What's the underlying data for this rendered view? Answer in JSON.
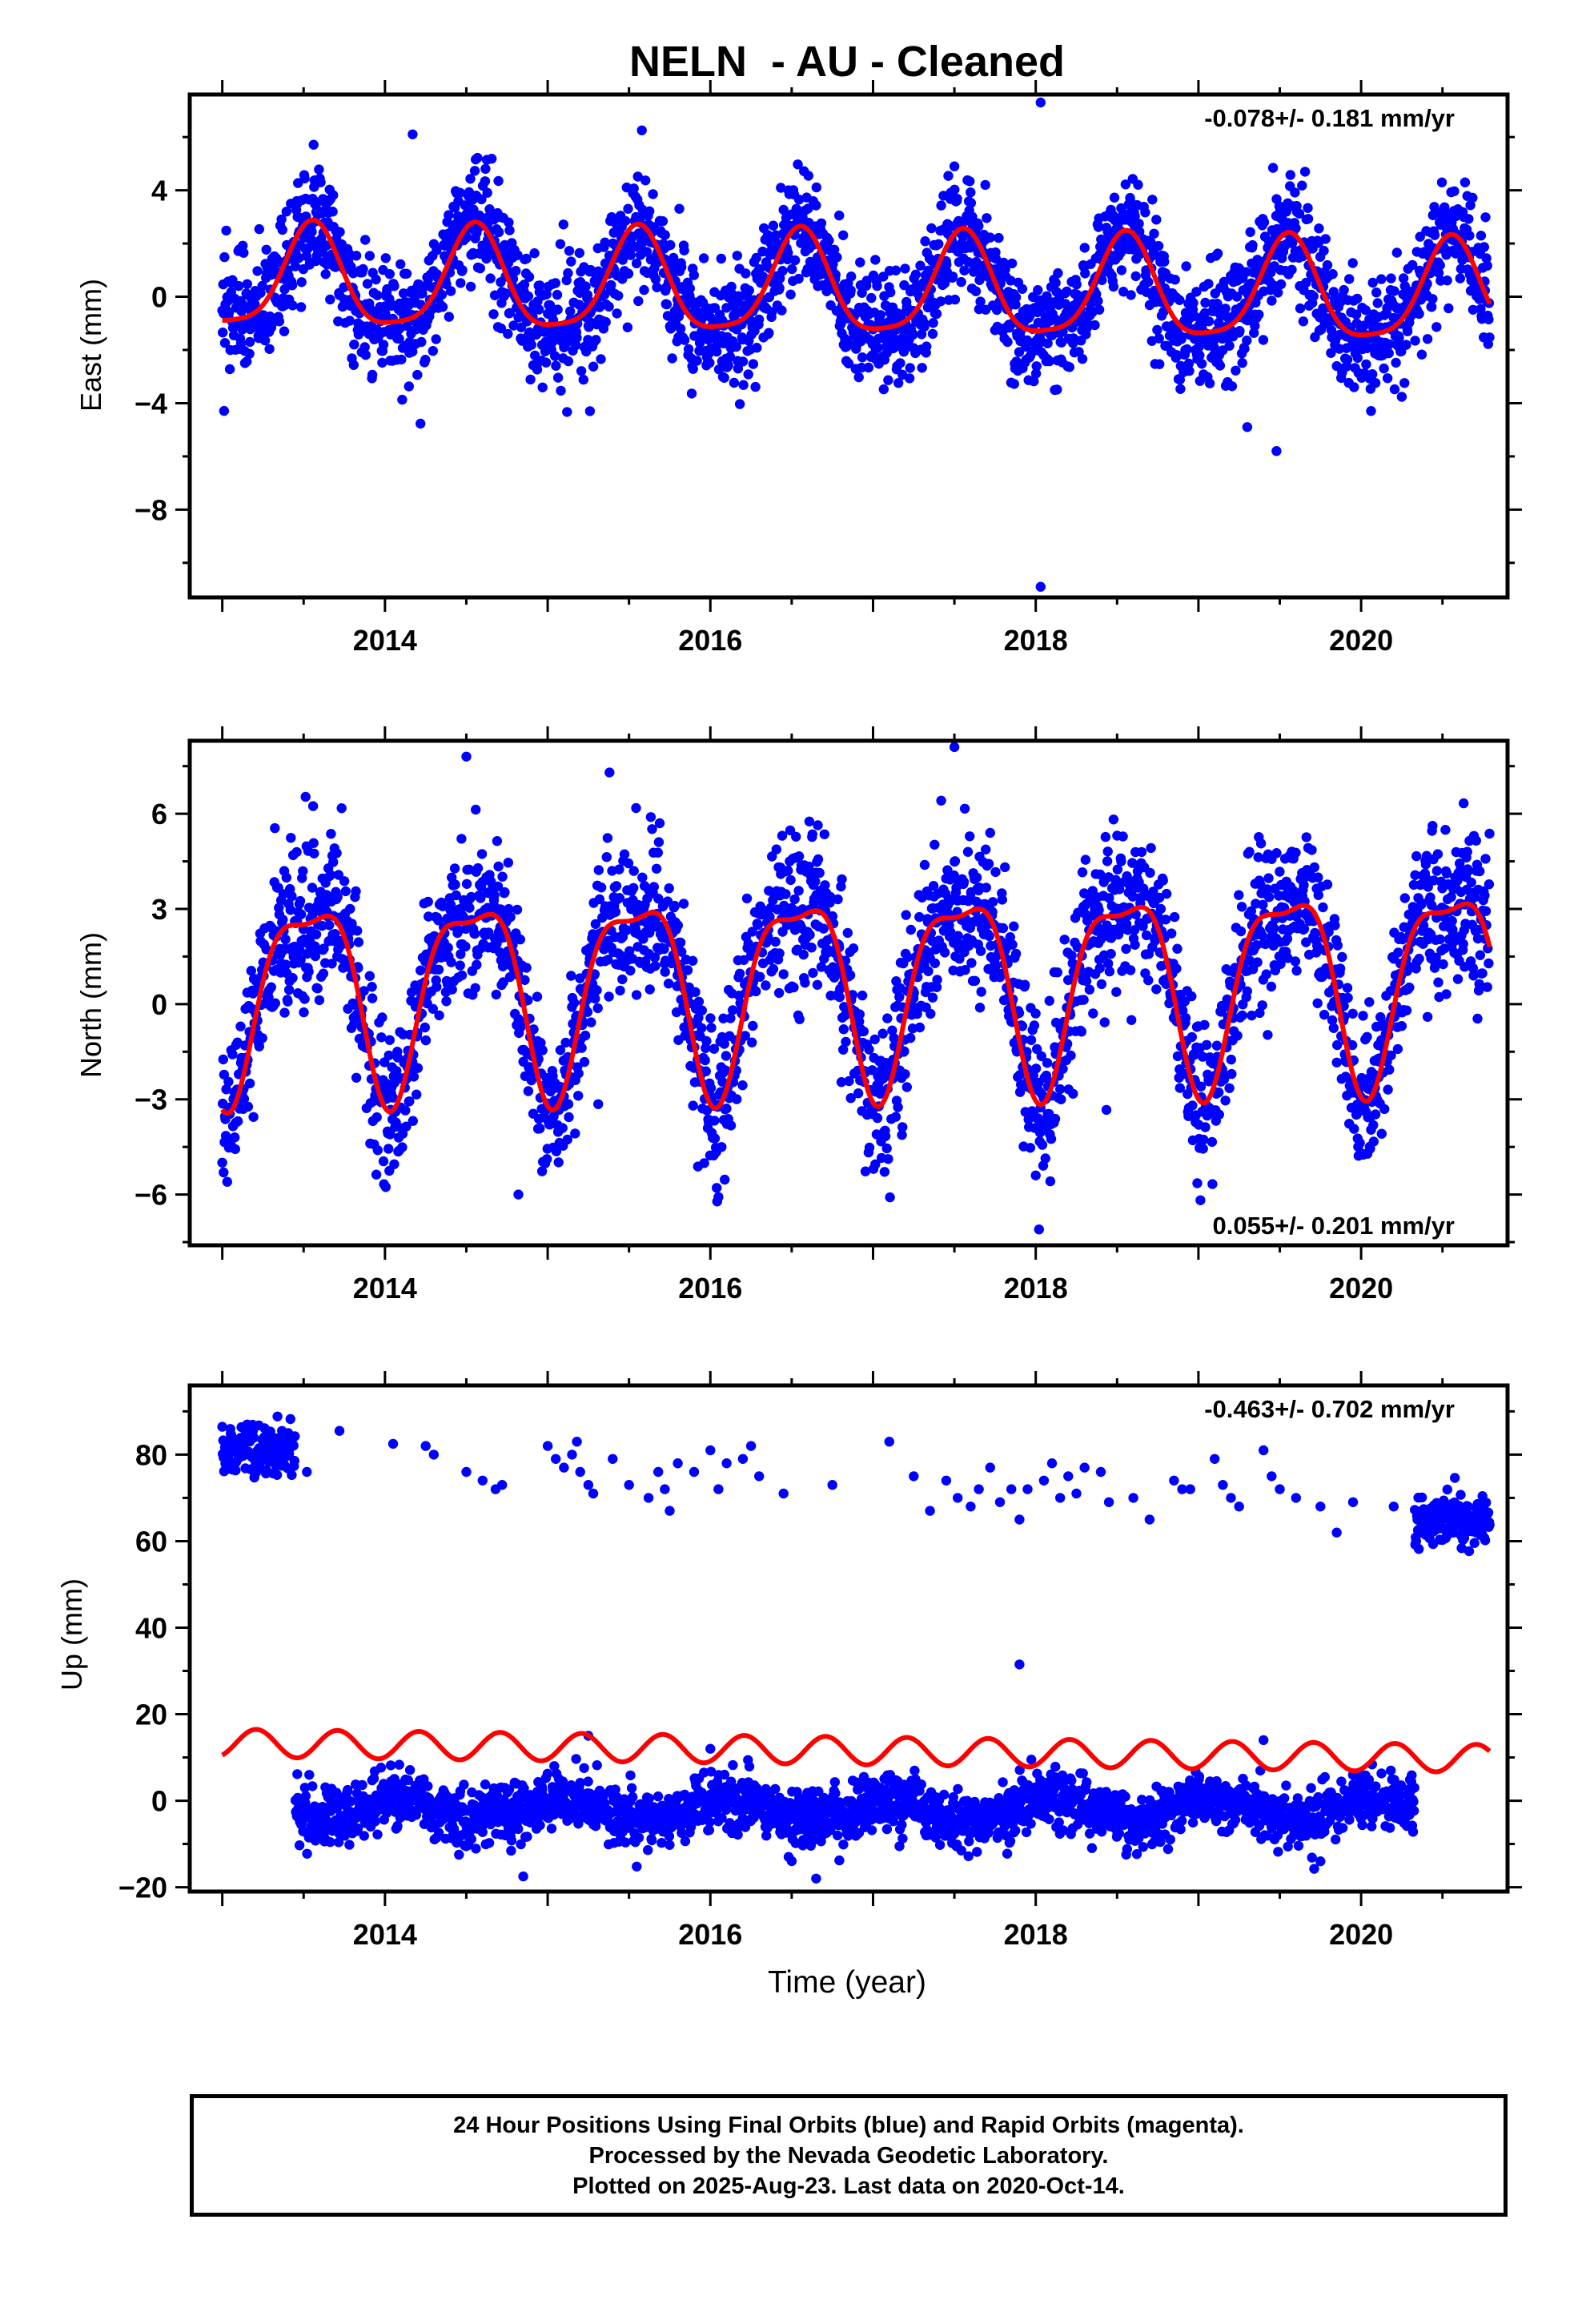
{
  "title": "NELN  - AU - Cleaned",
  "x_axis_label": "Time (year)",
  "caption_lines": [
    "24 Hour Positions Using Final Orbits (blue) and Rapid Orbits (magenta).",
    "Processed by the Nevada Geodetic Laboratory.",
    "Plotted on 2025-Aug-23. Last data on 2020-Oct-14."
  ],
  "colors": {
    "data_points": "#0000ff",
    "model_fit": "#ff0000",
    "frame": "#000000"
  },
  "chart_data": [
    {
      "type": "scatter",
      "name": "east",
      "ylabel": "East (mm)",
      "rate_label": "-0.078+/- 0.181 mm/yr",
      "rate_label_position": "top-right",
      "xlim": [
        2012.8,
        2020.9
      ],
      "ylim": [
        -11.3,
        7.6
      ],
      "x_ticks": [
        2014,
        2016,
        2018,
        2020
      ],
      "y_ticks": [
        4,
        0,
        -4,
        -8
      ],
      "y_tick_labels": [
        "4",
        "0",
        "−4",
        "−8"
      ],
      "x_range": [
        2013.0,
        2020.79
      ],
      "model": {
        "offset": 0.3,
        "trend": -0.078,
        "ref_year": 2017.0,
        "annual_cos": -1.8,
        "annual_sin": -0.6,
        "semiannual_cos": 0.3,
        "semiannual_sin": 0.3
      },
      "noise_sigma": 1.1,
      "outliers": [
        [
          2014.17,
          6.1
        ],
        [
          2018.03,
          7.3
        ],
        [
          2018.03,
          -10.9
        ],
        [
          2019.48,
          -5.8
        ],
        [
          2019.3,
          -4.9
        ],
        [
          2015.26,
          -4.3
        ],
        [
          2017.5,
          4.9
        ]
      ]
    },
    {
      "type": "scatter",
      "name": "north",
      "ylabel": "North (mm)",
      "rate_label": "0.055+/- 0.201 mm/yr",
      "rate_label_position": "bottom-right",
      "xlim": [
        2012.8,
        2020.9
      ],
      "ylim": [
        -7.6,
        8.3
      ],
      "x_ticks": [
        2014,
        2016,
        2018,
        2020
      ],
      "y_ticks": [
        6,
        3,
        0,
        -3,
        -6
      ],
      "y_tick_labels": [
        "6",
        "3",
        "0",
        "−3",
        "−6"
      ],
      "x_range": [
        2013.0,
        2020.79
      ],
      "model": {
        "offset": 0.7,
        "trend": 0.055,
        "ref_year": 2017.0,
        "annual_cos": -2.9,
        "annual_sin": -0.7,
        "semiannual_cos": -0.9,
        "semiannual_sin": -0.3
      },
      "noise_sigma": 1.2,
      "outliers": [
        [
          2014.5,
          7.8
        ],
        [
          2015.38,
          7.3
        ],
        [
          2017.5,
          8.1
        ],
        [
          2018.02,
          -7.1
        ],
        [
          2014.82,
          -6.0
        ],
        [
          2018.0,
          -5.4
        ]
      ]
    },
    {
      "type": "scatter",
      "name": "up",
      "ylabel": "Up (mm)",
      "rate_label": "-0.463+/- 0.702 mm/yr",
      "rate_label_position": "top-right",
      "xlim": [
        2012.8,
        2020.9
      ],
      "ylim": [
        -21,
        96
      ],
      "x_ticks": [
        2014,
        2016,
        2018,
        2020
      ],
      "y_ticks": [
        80,
        60,
        40,
        20,
        0,
        -20
      ],
      "y_tick_labels": [
        "80",
        "60",
        "40",
        "20",
        "0",
        "−20"
      ],
      "x_range": [
        2013.0,
        2020.79
      ],
      "model": {
        "offset": 11.5,
        "trend": -0.463,
        "ref_year": 2017.0,
        "annual_cos": 0.0,
        "annual_sin": 0.0,
        "semiannual_cos": -2.8,
        "semiannual_sin": 1.6
      },
      "main_cluster": {
        "x_range": [
          2013.45,
          2020.33
        ],
        "mean": -2.0,
        "seasonal_amp": 2.5,
        "noise_sigma": 3.2
      },
      "high_cluster_early": {
        "x_range": [
          2013.0,
          2013.45
        ],
        "mean": 81,
        "noise_sigma": 3.2
      },
      "high_cluster_late": {
        "x_range": [
          2020.33,
          2020.79
        ],
        "mean": 65,
        "noise_sigma": 3.0
      },
      "high_sparse": [
        [
          2013.72,
          85.5
        ],
        [
          2013.52,
          76
        ],
        [
          2014.05,
          82.5
        ],
        [
          2014.25,
          82
        ],
        [
          2014.3,
          80
        ],
        [
          2014.5,
          76
        ],
        [
          2014.6,
          74
        ],
        [
          2014.68,
          72
        ],
        [
          2014.72,
          73
        ],
        [
          2015.0,
          82
        ],
        [
          2015.05,
          79
        ],
        [
          2015.1,
          77
        ],
        [
          2015.15,
          80
        ],
        [
          2015.18,
          83
        ],
        [
          2015.2,
          76
        ],
        [
          2015.25,
          73
        ],
        [
          2015.28,
          71
        ],
        [
          2015.4,
          79
        ],
        [
          2015.5,
          73
        ],
        [
          2015.62,
          70
        ],
        [
          2015.68,
          76
        ],
        [
          2015.72,
          72
        ],
        [
          2015.75,
          67
        ],
        [
          2015.8,
          78
        ],
        [
          2015.9,
          76
        ],
        [
          2016.0,
          81
        ],
        [
          2016.05,
          72
        ],
        [
          2016.1,
          78
        ],
        [
          2016.2,
          79
        ],
        [
          2016.25,
          82
        ],
        [
          2016.3,
          75
        ],
        [
          2016.45,
          71
        ],
        [
          2016.75,
          73
        ],
        [
          2017.1,
          83
        ],
        [
          2017.25,
          75
        ],
        [
          2017.35,
          67
        ],
        [
          2017.45,
          74
        ],
        [
          2017.52,
          70
        ],
        [
          2017.6,
          68
        ],
        [
          2017.65,
          72
        ],
        [
          2017.72,
          77
        ],
        [
          2017.78,
          69
        ],
        [
          2017.85,
          72
        ],
        [
          2017.9,
          65
        ],
        [
          2017.95,
          72
        ],
        [
          2018.05,
          74
        ],
        [
          2018.1,
          78
        ],
        [
          2018.15,
          70
        ],
        [
          2018.2,
          75
        ],
        [
          2018.25,
          71
        ],
        [
          2018.3,
          77
        ],
        [
          2018.4,
          76
        ],
        [
          2018.45,
          69
        ],
        [
          2018.6,
          70
        ],
        [
          2018.7,
          65
        ],
        [
          2018.85,
          74
        ],
        [
          2018.9,
          72
        ],
        [
          2018.95,
          72
        ],
        [
          2019.1,
          79
        ],
        [
          2019.15,
          73
        ],
        [
          2019.2,
          70
        ],
        [
          2019.25,
          68
        ],
        [
          2019.4,
          81
        ],
        [
          2019.45,
          75
        ],
        [
          2019.5,
          72
        ],
        [
          2019.6,
          70
        ],
        [
          2019.75,
          68
        ],
        [
          2019.85,
          62
        ],
        [
          2019.95,
          69
        ],
        [
          2020.2,
          68
        ]
      ],
      "outliers": [
        [
          2017.9,
          31.5
        ],
        [
          2014.85,
          -17.5
        ],
        [
          2016.65,
          -18
        ],
        [
          2019.75,
          -14
        ],
        [
          2015.25,
          15
        ],
        [
          2016.0,
          12
        ],
        [
          2019.4,
          14
        ]
      ]
    }
  ]
}
